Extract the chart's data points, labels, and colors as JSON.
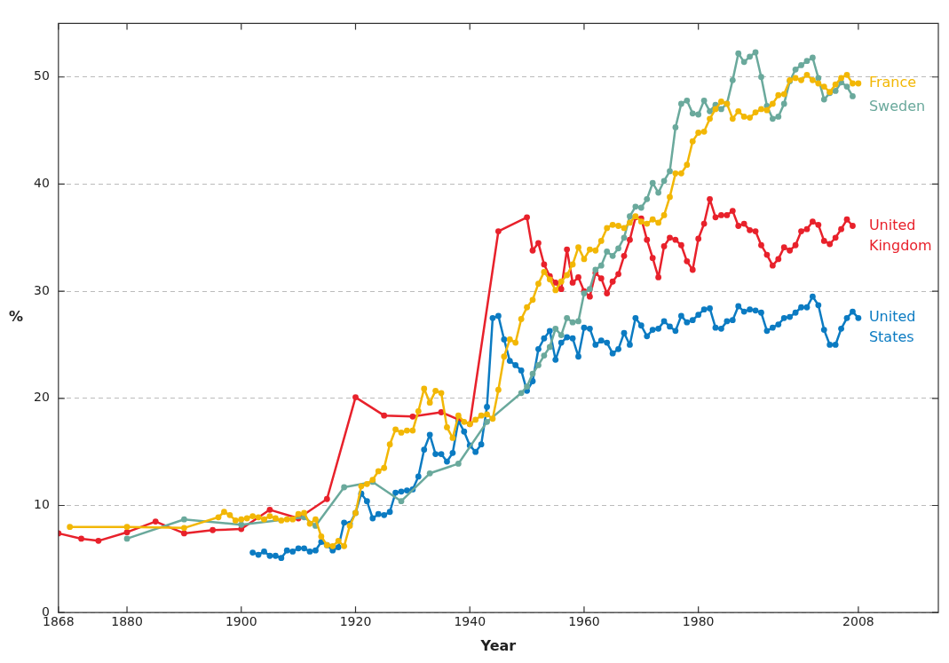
{
  "chart_data": {
    "type": "line",
    "xlabel": "Year",
    "ylabel": "%",
    "xlim": [
      1868,
      2022
    ],
    "ylim": [
      0,
      55
    ],
    "xticks": [
      1868,
      1880,
      1900,
      1920,
      1940,
      1960,
      1980,
      2008
    ],
    "yticks": [
      0,
      10,
      20,
      30,
      40,
      50
    ],
    "grid": "y",
    "legend": false,
    "marker": "circle",
    "line_style": "solid",
    "series": [
      {
        "name": "France",
        "color": "#f2b705",
        "x": [
          1870,
          1880,
          1890,
          1896,
          1897,
          1898,
          1899,
          1900,
          1901,
          1902,
          1903,
          1904,
          1905,
          1906,
          1907,
          1908,
          1909,
          1910,
          1911,
          1912,
          1913,
          1914,
          1915,
          1916,
          1917,
          1918,
          1919,
          1920,
          1921,
          1922,
          1923,
          1924,
          1925,
          1926,
          1927,
          1928,
          1929,
          1930,
          1931,
          1932,
          1933,
          1934,
          1935,
          1936,
          1937,
          1938,
          1939,
          1940,
          1941,
          1942,
          1943,
          1944,
          1945,
          1946,
          1947,
          1948,
          1949,
          1950,
          1951,
          1952,
          1953,
          1954,
          1955,
          1956,
          1957,
          1958,
          1959,
          1960,
          1961,
          1962,
          1963,
          1964,
          1965,
          1966,
          1967,
          1968,
          1969,
          1970,
          1971,
          1972,
          1973,
          1974,
          1975,
          1976,
          1977,
          1978,
          1979,
          1980,
          1981,
          1982,
          1983,
          1984,
          1985,
          1986,
          1987,
          1988,
          1989,
          1990,
          1991,
          1992,
          1993,
          1994,
          1995,
          1996,
          1997,
          1998,
          1999,
          2000,
          2001,
          2002,
          2003,
          2004,
          2005,
          2006,
          2007,
          2008
        ],
        "values": [
          8.0,
          8.0,
          7.9,
          8.9,
          9.4,
          9.1,
          8.6,
          8.7,
          8.8,
          9.0,
          8.9,
          8.7,
          9.0,
          8.8,
          8.6,
          8.7,
          8.7,
          9.2,
          9.3,
          8.3,
          8.7,
          7.1,
          6.3,
          6.2,
          6.7,
          6.2,
          8.1,
          9.3,
          11.8,
          12.0,
          12.4,
          13.2,
          13.5,
          15.7,
          17.1,
          16.8,
          17.0,
          17.0,
          18.8,
          20.9,
          19.6,
          20.7,
          20.5,
          17.3,
          16.3,
          18.4,
          17.8,
          17.6,
          18.0,
          18.4,
          18.5,
          18.1,
          20.8,
          23.9,
          25.5,
          25.2,
          27.4,
          28.5,
          29.2,
          30.7,
          31.8,
          31.1,
          30.1,
          30.9,
          31.5,
          32.5,
          34.1,
          33.0,
          33.9,
          33.8,
          34.7,
          35.9,
          36.2,
          36.1,
          35.9,
          36.4,
          37.0,
          36.5,
          36.3,
          36.7,
          36.4,
          37.1,
          38.8,
          41.0,
          41.0,
          41.8,
          44.0,
          44.8,
          44.9,
          46.1,
          47.0,
          47.7,
          47.5,
          46.1,
          46.8,
          46.3,
          46.2,
          46.7,
          47.0,
          46.9,
          47.5,
          48.3,
          48.4,
          49.7,
          49.9,
          49.7,
          50.2,
          49.7,
          49.4,
          49.1,
          48.6,
          49.3,
          49.9,
          50.2,
          49.4,
          49.4
        ]
      },
      {
        "name": "Sweden",
        "color": "#6aa99c",
        "x": [
          1880,
          1890,
          1900,
          1911,
          1913,
          1918,
          1923,
          1928,
          1933,
          1938,
          1943,
          1949,
          1950,
          1951,
          1952,
          1953,
          1954,
          1955,
          1956,
          1957,
          1958,
          1959,
          1960,
          1961,
          1962,
          1963,
          1964,
          1965,
          1966,
          1967,
          1968,
          1969,
          1970,
          1971,
          1972,
          1973,
          1974,
          1975,
          1976,
          1977,
          1978,
          1979,
          1980,
          1981,
          1982,
          1983,
          1984,
          1985,
          1986,
          1987,
          1988,
          1989,
          1990,
          1991,
          1992,
          1993,
          1994,
          1995,
          1996,
          1997,
          1998,
          1999,
          2000,
          2001,
          2002,
          2003,
          2004,
          2005,
          2006,
          2007
        ],
        "values": [
          6.9,
          8.7,
          8.2,
          8.9,
          8.1,
          11.7,
          12.2,
          10.4,
          13.0,
          13.9,
          17.8,
          20.5,
          21.1,
          22.3,
          23.1,
          24.0,
          24.8,
          26.5,
          25.9,
          27.5,
          27.1,
          27.2,
          29.8,
          30.2,
          32.0,
          32.4,
          33.7,
          33.3,
          34.0,
          35.0,
          37.0,
          37.9,
          37.8,
          38.6,
          40.1,
          39.2,
          40.3,
          41.2,
          45.3,
          47.5,
          47.8,
          46.6,
          46.5,
          47.8,
          46.8,
          47.4,
          47.0,
          47.5,
          49.7,
          52.2,
          51.4,
          51.9,
          52.3,
          50.0,
          47.3,
          46.1,
          46.3,
          47.5,
          49.6,
          50.7,
          51.1,
          51.5,
          51.8,
          49.9,
          47.9,
          48.5,
          48.7,
          49.5,
          49.1,
          48.2
        ]
      },
      {
        "name": "United Kingdom",
        "color": "#e8212b",
        "x": [
          1868,
          1872,
          1875,
          1880,
          1885,
          1890,
          1895,
          1900,
          1905,
          1910,
          1915,
          1920,
          1925,
          1930,
          1935,
          1940,
          1945,
          1950,
          1951,
          1952,
          1953,
          1954,
          1955,
          1956,
          1957,
          1958,
          1959,
          1960,
          1961,
          1962,
          1963,
          1964,
          1965,
          1966,
          1967,
          1968,
          1969,
          1970,
          1971,
          1972,
          1973,
          1974,
          1975,
          1976,
          1977,
          1978,
          1979,
          1980,
          1981,
          1982,
          1983,
          1984,
          1985,
          1986,
          1987,
          1988,
          1989,
          1990,
          1991,
          1992,
          1993,
          1994,
          1995,
          1996,
          1997,
          1998,
          1999,
          2000,
          2001,
          2002,
          2003,
          2004,
          2005,
          2006,
          2007
        ],
        "values": [
          7.4,
          6.9,
          6.7,
          7.5,
          8.5,
          7.4,
          7.7,
          7.8,
          9.6,
          8.8,
          10.6,
          20.1,
          18.4,
          18.3,
          18.7,
          17.6,
          35.6,
          36.9,
          33.8,
          34.5,
          32.5,
          31.4,
          30.8,
          30.2,
          33.9,
          30.8,
          31.3,
          30.0,
          29.5,
          31.7,
          31.2,
          29.8,
          30.9,
          31.6,
          33.3,
          34.8,
          36.9,
          36.8,
          34.8,
          33.1,
          31.3,
          34.2,
          35.0,
          34.8,
          34.3,
          32.8,
          32.0,
          34.9,
          36.3,
          38.6,
          36.9,
          37.1,
          37.1,
          37.5,
          36.1,
          36.3,
          35.7,
          35.6,
          34.3,
          33.4,
          32.4,
          33.0,
          34.1,
          33.8,
          34.3,
          35.6,
          35.8,
          36.5,
          36.2,
          34.7,
          34.4,
          35.0,
          35.8,
          36.7,
          36.1
        ]
      },
      {
        "name": "United States",
        "color": "#0b7bc2",
        "x": [
          1902,
          1903,
          1904,
          1905,
          1906,
          1907,
          1908,
          1909,
          1910,
          1911,
          1912,
          1913,
          1914,
          1915,
          1916,
          1917,
          1918,
          1919,
          1920,
          1921,
          1922,
          1923,
          1924,
          1925,
          1926,
          1927,
          1928,
          1929,
          1930,
          1931,
          1932,
          1933,
          1934,
          1935,
          1936,
          1937,
          1938,
          1939,
          1940,
          1941,
          1942,
          1943,
          1944,
          1945,
          1946,
          1947,
          1948,
          1949,
          1950,
          1951,
          1952,
          1953,
          1954,
          1955,
          1956,
          1957,
          1958,
          1959,
          1960,
          1961,
          1962,
          1963,
          1964,
          1965,
          1966,
          1967,
          1968,
          1969,
          1970,
          1971,
          1972,
          1973,
          1974,
          1975,
          1976,
          1977,
          1978,
          1979,
          1980,
          1981,
          1982,
          1983,
          1984,
          1985,
          1986,
          1987,
          1988,
          1989,
          1990,
          1991,
          1992,
          1993,
          1994,
          1995,
          1996,
          1997,
          1998,
          1999,
          2000,
          2001,
          2002,
          2003,
          2004,
          2005,
          2006,
          2007,
          2008
        ],
        "values": [
          5.6,
          5.4,
          5.7,
          5.3,
          5.3,
          5.1,
          5.8,
          5.7,
          6.0,
          6.0,
          5.7,
          5.8,
          6.6,
          6.3,
          5.8,
          6.1,
          8.4,
          8.3,
          9.3,
          11.1,
          10.4,
          8.8,
          9.2,
          9.1,
          9.4,
          11.2,
          11.3,
          11.4,
          11.5,
          12.7,
          15.2,
          16.6,
          14.8,
          14.8,
          14.1,
          14.9,
          17.9,
          16.9,
          15.6,
          15.0,
          15.7,
          19.2,
          27.5,
          27.7,
          25.5,
          23.5,
          23.1,
          22.6,
          20.7,
          21.6,
          24.6,
          25.6,
          26.3,
          23.6,
          25.2,
          25.7,
          25.6,
          23.9,
          26.6,
          26.5,
          25.0,
          25.4,
          25.2,
          24.2,
          24.6,
          26.1,
          25.0,
          27.5,
          26.8,
          25.8,
          26.4,
          26.5,
          27.2,
          26.7,
          26.3,
          27.7,
          27.1,
          27.3,
          27.8,
          28.3,
          28.4,
          26.6,
          26.5,
          27.2,
          27.3,
          28.6,
          28.1,
          28.3,
          28.2,
          28.0,
          26.3,
          26.6,
          26.9,
          27.5,
          27.6,
          28.0,
          28.5,
          28.5,
          29.5,
          28.7,
          26.4,
          25.0,
          25.0,
          26.5,
          27.5,
          28.1,
          27.5
        ]
      }
    ]
  }
}
